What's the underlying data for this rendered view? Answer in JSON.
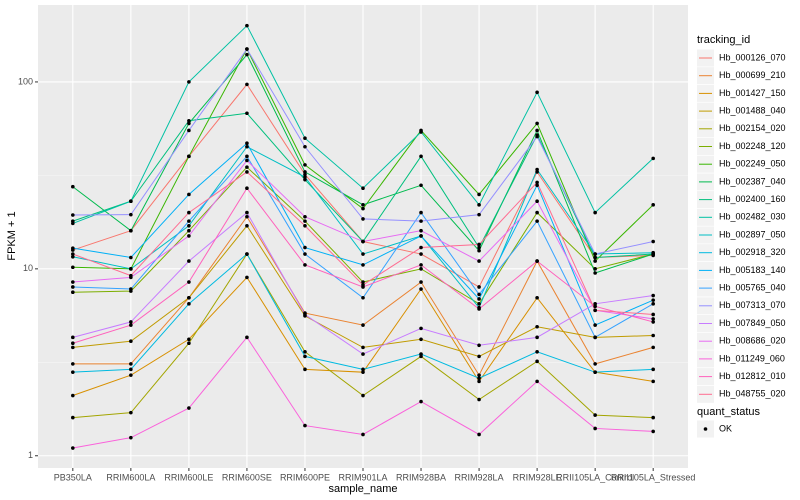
{
  "chart_data": {
    "type": "line",
    "x_label": "sample_name",
    "y_label": "FPKM + 1",
    "legend_title": "tracking_id",
    "point_legend": {
      "title": "quant_status",
      "labels": [
        "OK"
      ]
    },
    "log_y": true,
    "grid": true,
    "legend": "right",
    "categories": [
      "PB350LA",
      "RRIM600LA",
      "RRIM600LE",
      "RRIM600SE",
      "RRIM600PE",
      "RRIM901LA",
      "RRIM928BA",
      "RRIM928LA",
      "RRIM928LE",
      "RRII105LA_Control",
      "RRII105LA_Stressed"
    ],
    "ylim": [
      0.86,
      258
    ],
    "yticks": [
      1,
      10,
      100
    ],
    "series": [
      {
        "name": "Hb_000126_070",
        "color": "#F8766D",
        "values": [
          12.6,
          16,
          40,
          97,
          32,
          14,
          12,
          8,
          33,
          11.5,
          11.8
        ]
      },
      {
        "name": "Hb_000699_210",
        "color": "#EA8331",
        "values": [
          3.1,
          3.1,
          7,
          19,
          5.8,
          5,
          8.5,
          2.7,
          11,
          3.1,
          3.8
        ]
      },
      {
        "name": "Hb_001427_150",
        "color": "#D89000",
        "values": [
          2.1,
          2.7,
          4.2,
          9,
          2.9,
          2.8,
          7.8,
          2.5,
          7,
          2.8,
          2.5
        ]
      },
      {
        "name": "Hb_001488_040",
        "color": "#C09B00",
        "values": [
          3.8,
          4.1,
          7,
          17,
          5.6,
          3.8,
          4.2,
          3.4,
          4.9,
          4.3,
          4.4
        ]
      },
      {
        "name": "Hb_002154_020",
        "color": "#A3A500",
        "values": [
          1.6,
          1.7,
          4,
          12,
          3.6,
          2.1,
          3.4,
          2,
          3.2,
          1.65,
          1.6
        ]
      },
      {
        "name": "Hb_002248_120",
        "color": "#7CAE00",
        "values": [
          7.5,
          7.6,
          16,
          35,
          18,
          8.5,
          10,
          6.5,
          20,
          10,
          12
        ]
      },
      {
        "name": "Hb_002249_050",
        "color": "#39B600",
        "values": [
          10.2,
          10,
          40,
          150,
          36,
          21,
          55,
          25,
          60,
          11,
          22
        ]
      },
      {
        "name": "Hb_002387_040",
        "color": "#00BB4E",
        "values": [
          27.5,
          16,
          60,
          140,
          33,
          22,
          28,
          12.5,
          55,
          9.5,
          12
        ]
      },
      {
        "name": "Hb_002400_160",
        "color": "#00BF7D",
        "values": [
          18,
          23,
          62,
          68,
          30,
          14,
          40,
          13,
          52,
          11.5,
          12
        ]
      },
      {
        "name": "Hb_002482_030",
        "color": "#00C1A3",
        "values": [
          17.5,
          23,
          100,
          200,
          50,
          27,
          54,
          22,
          88,
          20,
          39
        ]
      },
      {
        "name": "Hb_002897_050",
        "color": "#00BFC4",
        "values": [
          11.6,
          10,
          17,
          45,
          31,
          12,
          15,
          6.2,
          34,
          12,
          12.2
        ]
      },
      {
        "name": "Hb_002918_320",
        "color": "#00BAE0",
        "values": [
          2.8,
          2.9,
          6.5,
          12,
          3.4,
          2.9,
          3.5,
          2.6,
          3.6,
          2.8,
          2.9
        ]
      },
      {
        "name": "Hb_005183_140",
        "color": "#00B0F6",
        "values": [
          12.9,
          11.5,
          25,
          47,
          13,
          10.5,
          15,
          6.9,
          28,
          5,
          6.8
        ]
      },
      {
        "name": "Hb_005765_040",
        "color": "#35A2FF",
        "values": [
          8,
          7.8,
          18,
          40,
          12,
          7,
          20,
          7.3,
          18,
          4.3,
          6.5
        ]
      },
      {
        "name": "Hb_007313_070",
        "color": "#9590FF",
        "values": [
          19.4,
          19.5,
          55,
          150,
          45,
          18.5,
          18,
          19.5,
          51,
          12,
          14
        ]
      },
      {
        "name": "Hb_007849_050",
        "color": "#C77CFF",
        "values": [
          4.3,
          5.2,
          11,
          20,
          5.7,
          3.5,
          4.8,
          3.9,
          4.3,
          6.5,
          7.2
        ]
      },
      {
        "name": "Hb_008686_020",
        "color": "#E76BF3",
        "values": [
          8.5,
          9,
          15,
          38,
          19,
          14,
          16,
          11,
          23,
          6,
          5.4
        ]
      },
      {
        "name": "Hb_011249_060",
        "color": "#FA62DB",
        "values": [
          1.1,
          1.25,
          1.8,
          4.3,
          1.45,
          1.3,
          1.95,
          1.3,
          2.5,
          1.4,
          1.35
        ]
      },
      {
        "name": "Hb_012812_010",
        "color": "#FF62BC",
        "values": [
          4.0,
          5,
          8.5,
          27,
          10.5,
          8,
          10.5,
          6.1,
          11,
          6.3,
          5.2
        ]
      },
      {
        "name": "Hb_048755_020",
        "color": "#FF6C91",
        "values": [
          12,
          9.2,
          20,
          33,
          17,
          8.2,
          13,
          13.5,
          29,
          6,
          5.7
        ]
      }
    ]
  }
}
